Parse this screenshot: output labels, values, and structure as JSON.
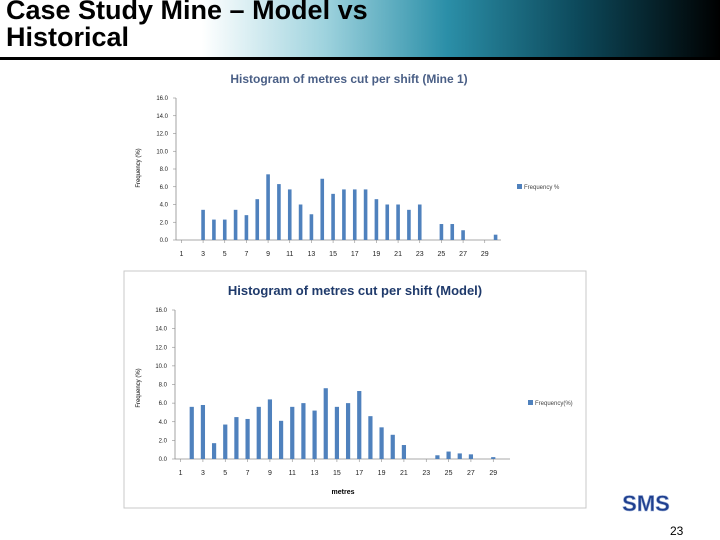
{
  "slide": {
    "title": "Case Study Mine – Model vs Historical",
    "page_number": "23",
    "logo_text": "SMS",
    "header_colors": [
      "#ffffff",
      "#2b8fa8",
      "#000000"
    ]
  },
  "chart_data": [
    {
      "type": "bar",
      "title": "Histogram of metres cut per shift (Mine 1)",
      "xlabel": "",
      "ylabel": "Frequency (%)",
      "ylim": [
        0,
        16
      ],
      "yticks": [
        "0.0",
        "2.0",
        "4.0",
        "6.0",
        "8.0",
        "10.0",
        "12.0",
        "14.0",
        "16.0"
      ],
      "xtick_labels": [
        "1",
        "3",
        "5",
        "7",
        "9",
        "11",
        "13",
        "15",
        "17",
        "19",
        "21",
        "23",
        "25",
        "27",
        "29"
      ],
      "categories": [
        1,
        2,
        3,
        4,
        5,
        6,
        7,
        8,
        9,
        10,
        11,
        12,
        13,
        14,
        15,
        16,
        17,
        18,
        19,
        20,
        21,
        22,
        23,
        24,
        25,
        26,
        27,
        28,
        29,
        30
      ],
      "series": [
        {
          "name": "Frequency %",
          "color": "#4f81bd",
          "values": [
            0,
            0,
            3.4,
            2.3,
            2.3,
            3.4,
            2.8,
            4.6,
            7.4,
            6.3,
            5.7,
            4.0,
            2.9,
            6.9,
            5.2,
            5.7,
            5.7,
            5.7,
            4.6,
            4.0,
            4.0,
            3.4,
            4.0,
            0,
            1.8,
            1.8,
            1.1,
            0,
            0,
            0.6
          ]
        }
      ],
      "legend": "right",
      "grid": false
    },
    {
      "type": "bar",
      "title": "Histogram of metres cut per shift (Model)",
      "xlabel": "metres",
      "ylabel": "Frequency (%)",
      "ylim": [
        0,
        16
      ],
      "yticks": [
        "0.0",
        "2.0",
        "4.0",
        "6.0",
        "8.0",
        "10.0",
        "12.0",
        "14.0",
        "16.0"
      ],
      "xtick_labels": [
        "1",
        "3",
        "5",
        "7",
        "9",
        "11",
        "13",
        "15",
        "17",
        "19",
        "21",
        "23",
        "25",
        "27",
        "29"
      ],
      "categories": [
        1,
        2,
        3,
        4,
        5,
        6,
        7,
        8,
        9,
        10,
        11,
        12,
        13,
        14,
        15,
        16,
        17,
        18,
        19,
        20,
        21,
        22,
        23,
        24,
        25,
        26,
        27,
        28,
        29,
        30
      ],
      "series": [
        {
          "name": "Frequency(%)",
          "color": "#4f81bd",
          "values": [
            0,
            5.6,
            5.8,
            1.7,
            3.7,
            4.5,
            4.3,
            5.6,
            6.4,
            4.1,
            5.6,
            6.0,
            5.2,
            7.6,
            5.6,
            6.0,
            7.3,
            4.6,
            3.4,
            2.6,
            1.5,
            0,
            0,
            0.4,
            0.8,
            0.6,
            0.5,
            0,
            0.2,
            0
          ]
        }
      ],
      "legend": "right",
      "grid": false
    }
  ]
}
